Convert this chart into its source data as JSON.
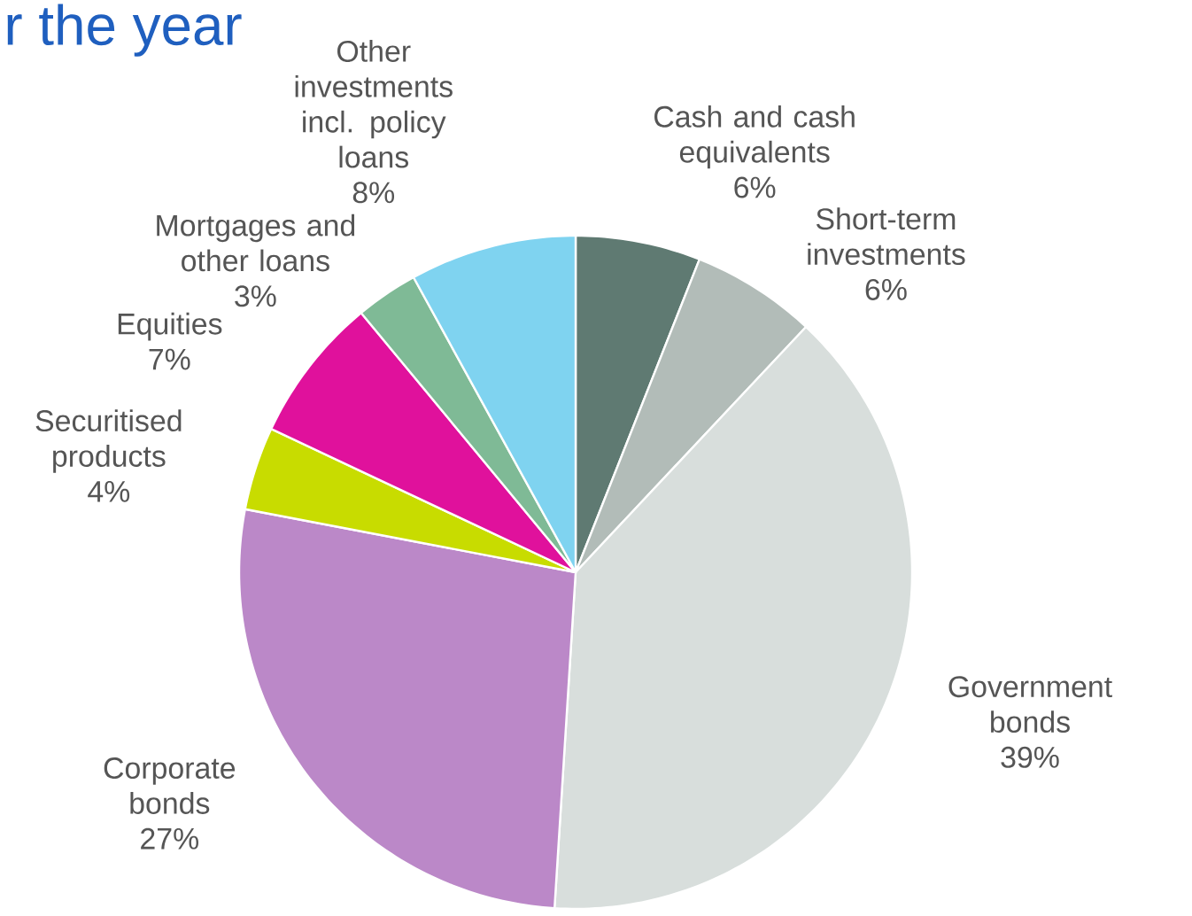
{
  "chart_data": {
    "type": "pie",
    "title": "r the year",
    "categories": [
      "Cash and cash equivalents",
      "Short-term investments",
      "Government bonds",
      "Corporate bonds",
      "Securitised products",
      "Equities",
      "Mortgages and other loans",
      "Other investments incl. policy loans"
    ],
    "values": [
      6,
      6,
      39,
      27,
      4,
      7,
      3,
      8
    ],
    "value_labels": [
      "6%",
      "6%",
      "39%",
      "27%",
      "4%",
      "7%",
      "3%",
      "8%"
    ],
    "colors": [
      "#5f7a72",
      "#b2bcb8",
      "#d8dedc",
      "#bb88c8",
      "#c8dc00",
      "#e0119c",
      "#7fba96",
      "#7fd3f0"
    ]
  }
}
